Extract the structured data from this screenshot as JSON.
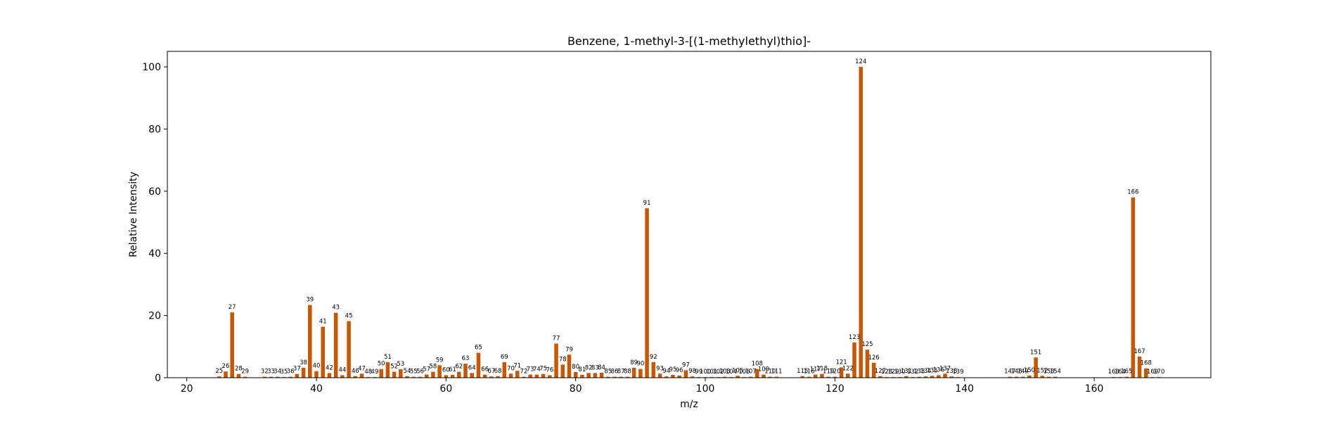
{
  "chart_data": {
    "type": "bar",
    "title": "Benzene, 1-methyl-3-[(1-methylethyl)thio]-",
    "xlabel": "m/z",
    "ylabel": "Relative Intensity",
    "xlim": [
      17,
      178
    ],
    "ylim": [
      0,
      105
    ],
    "xticks": [
      20,
      40,
      60,
      80,
      100,
      120,
      140,
      160
    ],
    "yticks": [
      0,
      20,
      40,
      60,
      80,
      100
    ],
    "grid": false,
    "bar_color": "#cc5500",
    "x": [
      25,
      26,
      27,
      28,
      29,
      32,
      33,
      34,
      35,
      36,
      37,
      38,
      39,
      40,
      41,
      42,
      43,
      44,
      45,
      46,
      47,
      48,
      49,
      50,
      51,
      52,
      53,
      54,
      55,
      56,
      57,
      58,
      59,
      60,
      61,
      62,
      63,
      64,
      65,
      66,
      67,
      68,
      69,
      70,
      71,
      72,
      73,
      74,
      75,
      76,
      77,
      78,
      79,
      80,
      81,
      82,
      83,
      84,
      85,
      86,
      87,
      88,
      89,
      90,
      91,
      92,
      93,
      94,
      95,
      96,
      97,
      98,
      99,
      100,
      101,
      102,
      103,
      104,
      105,
      106,
      107,
      108,
      109,
      110,
      111,
      115,
      116,
      117,
      118,
      119,
      120,
      121,
      122,
      123,
      124,
      125,
      126,
      127,
      128,
      129,
      130,
      131,
      132,
      133,
      134,
      135,
      136,
      137,
      138,
      139,
      147,
      148,
      149,
      150,
      151,
      152,
      153,
      154,
      163,
      164,
      165,
      166,
      167,
      168,
      169,
      170
    ],
    "values": [
      0.4,
      2.0,
      21.0,
      1.2,
      0.3,
      0.3,
      0.3,
      0.3,
      0.2,
      0.3,
      1.2,
      3.2,
      23.4,
      2.1,
      16.4,
      1.5,
      20.9,
      0.8,
      18.2,
      0.5,
      1.3,
      0.2,
      0.2,
      2.8,
      5.0,
      1.9,
      2.7,
      0.5,
      0.3,
      0.3,
      1.0,
      1.9,
      4.0,
      0.8,
      0.9,
      1.9,
      4.5,
      1.5,
      8.0,
      1.0,
      0.4,
      0.5,
      5.0,
      1.3,
      2.2,
      0.3,
      1.0,
      1.0,
      1.2,
      0.8,
      11.0,
      4.2,
      7.4,
      1.8,
      0.9,
      1.5,
      1.5,
      1.6,
      0.3,
      0.3,
      0.3,
      0.3,
      3.2,
      2.8,
      54.5,
      5.0,
      1.3,
      0.4,
      0.9,
      0.7,
      2.4,
      0.4,
      0.2,
      0.2,
      0.2,
      0.2,
      0.3,
      0.2,
      0.6,
      0.2,
      0.3,
      2.8,
      1.0,
      0.3,
      0.3,
      0.5,
      0.3,
      1.0,
      1.2,
      0.3,
      0.3,
      3.3,
      1.3,
      11.3,
      100.0,
      9.0,
      4.8,
      0.5,
      0.2,
      0.2,
      0.2,
      0.5,
      0.2,
      0.3,
      0.4,
      0.6,
      0.8,
      1.3,
      0.4,
      0.2,
      0.3,
      0.3,
      0.3,
      0.7,
      6.5,
      0.6,
      0.3,
      0.3,
      0.2,
      0.2,
      0.3,
      58.0,
      6.8,
      3.0,
      0.2,
      0.2
    ]
  }
}
